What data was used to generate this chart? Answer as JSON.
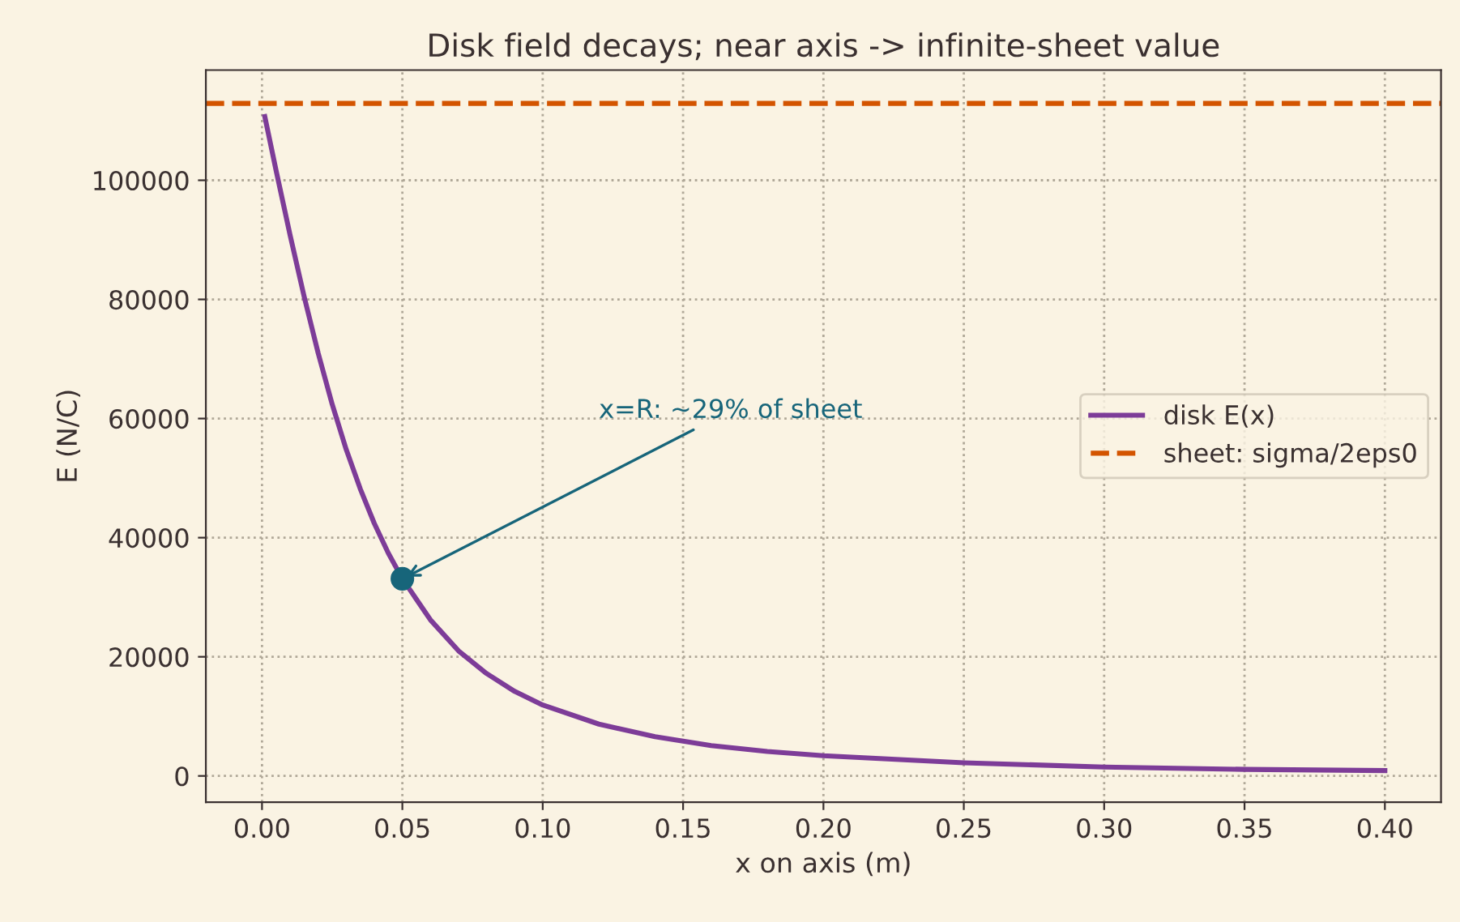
{
  "chart_data": {
    "type": "line",
    "title": "Disk field decays; near axis -> infinite-sheet value",
    "xlabel": "x on axis (m)",
    "ylabel": "E (N/C)",
    "series": [
      {
        "name": "disk E(x)",
        "color": "#7d3c98",
        "x": [
          0.001,
          0.005,
          0.01,
          0.015,
          0.02,
          0.025,
          0.03,
          0.035,
          0.04,
          0.045,
          0.05,
          0.06,
          0.07,
          0.08,
          0.09,
          0.1,
          0.12,
          0.14,
          0.16,
          0.18,
          0.2,
          0.25,
          0.3,
          0.35,
          0.4
        ],
        "values": [
          110700,
          101700,
          90800,
          80500,
          71000,
          62400,
          54800,
          48200,
          42400,
          37400,
          33100,
          26200,
          21000,
          17200,
          14200,
          11900,
          8700,
          6600,
          5100,
          4100,
          3400,
          2200,
          1500,
          1100,
          900
        ]
      },
      {
        "color": "#17657a",
        "type": "scatter",
        "marker": "circle",
        "x": [
          0.05
        ],
        "values": [
          33100
        ]
      }
    ],
    "ref_lines": [
      {
        "axis": "y",
        "value": 112900,
        "label": "sheet: sigma/2eps0",
        "color": "#d35400",
        "line_style": "dashed"
      }
    ],
    "annotations": [
      {
        "text": "x=R: ~29% of sheet",
        "x": 0.05,
        "y": 33100
      }
    ],
    "xlim": [
      -0.02,
      0.42
    ],
    "ylim": [
      -4400,
      118500
    ],
    "xticks": [
      {
        "value": 0,
        "label": "0.00"
      },
      {
        "value": 0.05,
        "label": "0.05"
      },
      {
        "value": 0.1,
        "label": "0.10"
      },
      {
        "value": 0.15,
        "label": "0.15"
      },
      {
        "value": 0.2,
        "label": "0.20"
      },
      {
        "value": 0.25,
        "label": "0.25"
      },
      {
        "value": 0.3,
        "label": "0.30"
      },
      {
        "value": 0.35,
        "label": "0.35"
      },
      {
        "value": 0.4,
        "label": "0.40"
      }
    ],
    "yticks": [
      0,
      20000,
      40000,
      60000,
      80000,
      100000
    ],
    "grid": true,
    "legend": "center right"
  }
}
